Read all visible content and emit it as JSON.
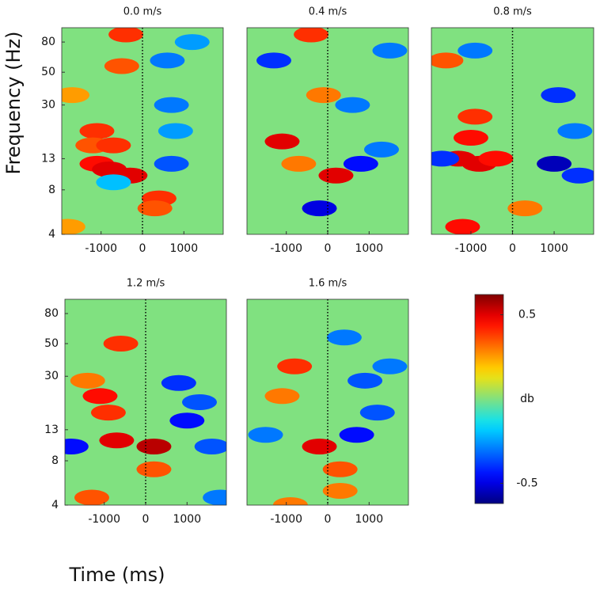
{
  "xlabel": "Time (ms)",
  "ylabel": "Frequency (Hz)",
  "colorbar": {
    "lim": [
      -0.62,
      0.62
    ],
    "ticks": [
      0.5,
      -0.5
    ],
    "label": "db"
  },
  "chart_data": [
    {
      "type": "heatmap",
      "title": "0.0 m/s",
      "log_y": true,
      "xlim": [
        -1950,
        1950
      ],
      "ylim": [
        4,
        100
      ],
      "xticks": [
        -1000,
        0,
        1000
      ],
      "yticks": [
        4,
        8,
        13,
        30,
        50,
        80
      ],
      "x": [
        -1100,
        -1200,
        -1100,
        -800,
        -300,
        -700,
        400,
        300,
        -1800,
        -500,
        -400,
        -1700,
        700,
        800,
        700,
        600,
        -700,
        1200
      ],
      "y": [
        20,
        16,
        12,
        11,
        10,
        16,
        7,
        6,
        4.5,
        55,
        90,
        35,
        30,
        20,
        12,
        60,
        9,
        80
      ],
      "values": [
        0.4,
        0.35,
        0.45,
        0.5,
        0.5,
        0.4,
        0.4,
        0.35,
        0.25,
        0.35,
        0.4,
        0.25,
        -0.3,
        -0.25,
        -0.35,
        -0.3,
        -0.2,
        -0.25
      ]
    },
    {
      "type": "heatmap",
      "title": "0.4 m/s",
      "log_y": true,
      "xlim": [
        -1950,
        1950
      ],
      "ylim": [
        4,
        100
      ],
      "xticks": [
        -1000,
        0,
        1000
      ],
      "x": [
        -1100,
        -700,
        200,
        -100,
        -400,
        -200,
        800,
        1300,
        -1300,
        600,
        1500
      ],
      "y": [
        17,
        12,
        10,
        35,
        90,
        6,
        12,
        15,
        60,
        30,
        70
      ],
      "values": [
        0.5,
        0.3,
        0.5,
        0.3,
        0.4,
        -0.5,
        -0.45,
        -0.3,
        -0.4,
        -0.3,
        -0.3
      ]
    },
    {
      "type": "heatmap",
      "title": "0.8 m/s",
      "log_y": true,
      "xlim": [
        -1950,
        1950
      ],
      "ylim": [
        4,
        100
      ],
      "xticks": [
        -1000,
        0,
        1000
      ],
      "x": [
        -900,
        -1000,
        -1300,
        -800,
        -400,
        -1200,
        -1600,
        300,
        1000,
        1600,
        -1700,
        1100,
        1500,
        -900
      ],
      "y": [
        25,
        18,
        13,
        12,
        13,
        4.5,
        60,
        6,
        12,
        10,
        13,
        35,
        20,
        70
      ],
      "values": [
        0.4,
        0.45,
        0.5,
        0.5,
        0.45,
        0.45,
        0.35,
        0.3,
        -0.55,
        -0.4,
        -0.4,
        -0.4,
        -0.3,
        -0.3
      ]
    },
    {
      "type": "heatmap",
      "title": "1.2 m/s",
      "log_y": true,
      "xlim": [
        -1950,
        1950
      ],
      "ylim": [
        4,
        100
      ],
      "xticks": [
        -1000,
        0,
        1000
      ],
      "yticks": [
        4,
        8,
        13,
        30,
        50,
        80
      ],
      "x": [
        -1100,
        -900,
        -700,
        200,
        200,
        -1400,
        -600,
        -1300,
        800,
        1000,
        1300,
        1600,
        -1800,
        1800
      ],
      "y": [
        22,
        17,
        11,
        10,
        7,
        28,
        50,
        4.5,
        27,
        15,
        20,
        10,
        10,
        4.5
      ],
      "values": [
        0.45,
        0.4,
        0.5,
        0.55,
        0.35,
        0.3,
        0.4,
        0.35,
        -0.4,
        -0.45,
        -0.35,
        -0.35,
        -0.45,
        -0.3
      ]
    },
    {
      "type": "heatmap",
      "title": "1.6 m/s",
      "log_y": true,
      "xlim": [
        -1950,
        1950
      ],
      "ylim": [
        4,
        100
      ],
      "xticks": [
        -1000,
        0,
        1000
      ],
      "x": [
        -800,
        -200,
        300,
        300,
        -1100,
        -900,
        700,
        1200,
        900,
        1500,
        400,
        -1500
      ],
      "y": [
        35,
        10,
        7,
        5,
        22,
        4,
        12,
        17,
        28,
        35,
        55,
        12
      ],
      "values": [
        0.4,
        0.5,
        0.35,
        0.3,
        0.3,
        0.3,
        -0.45,
        -0.35,
        -0.35,
        -0.3,
        -0.3,
        -0.3
      ]
    }
  ]
}
